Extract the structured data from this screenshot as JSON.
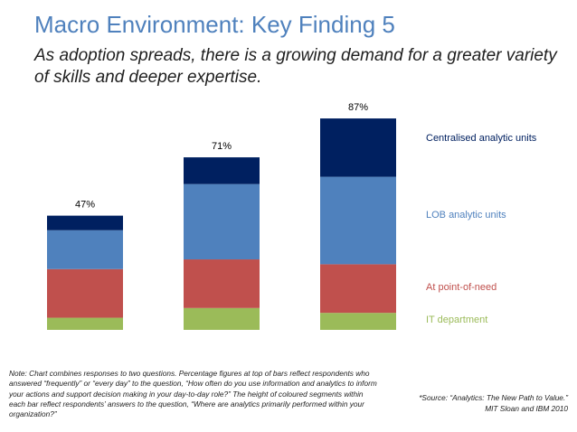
{
  "slide": {
    "title": "Macro Environment: Key Finding 5",
    "subtitle": "As adoption spreads, there is a growing demand for a greater variety of skills and deeper expertise."
  },
  "chart_data": {
    "type": "bar",
    "stacked": true,
    "categories": [
      "",
      "",
      ""
    ],
    "total_labels": [
      "47%",
      "71%",
      "87%"
    ],
    "totals": [
      47,
      71,
      87
    ],
    "series": [
      {
        "name": "IT department",
        "color": "#9bbb59",
        "values": [
          5,
          9,
          7
        ]
      },
      {
        "name": "At point-of-need",
        "color": "#c0504d",
        "values": [
          20,
          20,
          20
        ]
      },
      {
        "name": "LOB analytic units",
        "color": "#4f81bd",
        "values": [
          16,
          31,
          36
        ]
      },
      {
        "name": "Centralised analytic units",
        "color": "#002060",
        "values": [
          6,
          11,
          24
        ]
      }
    ],
    "ylim": [
      0,
      90
    ],
    "legend_position": "right",
    "grid": false,
    "xlabel": "",
    "ylabel": ""
  },
  "footnotes": {
    "note": "Note: Chart combines responses to two questions. Percentage figures at top of bars reflect respondents who answered “frequently” or “every day” to the question, “How often do you use information and analytics to inform your actions and support decision making in your day-to-day role?” The height of coloured segments within each bar reflect respondents’ answers to the question, “Where are analytics primarily performed within your organization?”",
    "source_line1": "*Source: “Analytics: The New Path to Value.”",
    "source_line2": "MIT Sloan and IBM 2010"
  }
}
